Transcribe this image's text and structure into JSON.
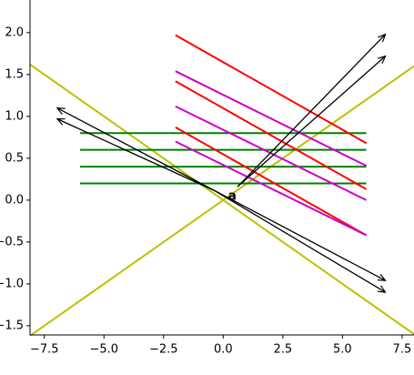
{
  "chart_data": {
    "type": "line",
    "xlim": [
      -8.1,
      8.0
    ],
    "ylim": [
      -1.61,
      2.39
    ],
    "xticks": [
      {
        "value": -7.5,
        "label": "−7.5"
      },
      {
        "value": -5.0,
        "label": "−5.0"
      },
      {
        "value": -2.5,
        "label": "−2.5"
      },
      {
        "value": 0.0,
        "label": "0.0"
      },
      {
        "value": 2.5,
        "label": "2.5"
      },
      {
        "value": 5.0,
        "label": "5.0"
      },
      {
        "value": 7.5,
        "label": "7.5"
      }
    ],
    "yticks": [
      {
        "value": -1.5,
        "label": "−1.5"
      },
      {
        "value": -1.0,
        "label": "−1.0"
      },
      {
        "value": -0.5,
        "label": "−0.5"
      },
      {
        "value": 0.0,
        "label": "0.0"
      },
      {
        "value": 0.5,
        "label": "0.5"
      },
      {
        "value": 1.0,
        "label": "1.0"
      },
      {
        "value": 1.5,
        "label": "1.5"
      },
      {
        "value": 2.0,
        "label": "2.0"
      }
    ],
    "series": [
      {
        "color": "#bfbf00",
        "x": [
          -8.1,
          8.0
        ],
        "values": [
          1.62,
          -1.6
        ]
      },
      {
        "color": "#bfbf00",
        "x": [
          -8.1,
          8.0
        ],
        "values": [
          -1.62,
          1.6
        ]
      },
      {
        "color": "#008000",
        "x": [
          -6,
          6
        ],
        "values": [
          0.8,
          0.8
        ]
      },
      {
        "color": "#008000",
        "x": [
          -6,
          6
        ],
        "values": [
          0.6,
          0.6
        ]
      },
      {
        "color": "#008000",
        "x": [
          -6,
          6
        ],
        "values": [
          0.4,
          0.4
        ]
      },
      {
        "color": "#008000",
        "x": [
          -6,
          6
        ],
        "values": [
          0.2,
          0.2
        ]
      },
      {
        "color": "#ff0000",
        "x": [
          -2,
          6
        ],
        "values": [
          1.97,
          0.68
        ]
      },
      {
        "color": "#ff0000",
        "x": [
          -2,
          6
        ],
        "values": [
          1.42,
          0.13
        ]
      },
      {
        "color": "#ff0000",
        "x": [
          -2,
          6
        ],
        "values": [
          0.87,
          -0.42
        ]
      },
      {
        "color": "#cc00cc",
        "x": [
          -2,
          6
        ],
        "values": [
          1.54,
          0.41
        ]
      },
      {
        "color": "#cc00cc",
        "x": [
          -2,
          6
        ],
        "values": [
          1.12,
          0.0
        ]
      },
      {
        "color": "#cc00cc",
        "x": [
          -2,
          6
        ],
        "values": [
          0.7,
          -0.42
        ]
      }
    ],
    "arrows": [
      {
        "x": [
          0.6,
          6.8
        ],
        "y": [
          0.16,
          1.98
        ]
      },
      {
        "x": [
          0.6,
          6.8
        ],
        "y": [
          0.16,
          1.72
        ]
      },
      {
        "x": [
          -0.34,
          -6.96
        ],
        "y": [
          0.11,
          1.1
        ]
      },
      {
        "x": [
          -0.34,
          -6.96
        ],
        "y": [
          0.11,
          0.97
        ]
      },
      {
        "x": [
          -0.34,
          6.8
        ],
        "y": [
          0.11,
          -0.96
        ]
      },
      {
        "x": [
          -0.34,
          6.8
        ],
        "y": [
          0.11,
          -1.1
        ]
      }
    ],
    "annotation": {
      "text": "a",
      "x": 0.2,
      "y": 0.05
    }
  }
}
